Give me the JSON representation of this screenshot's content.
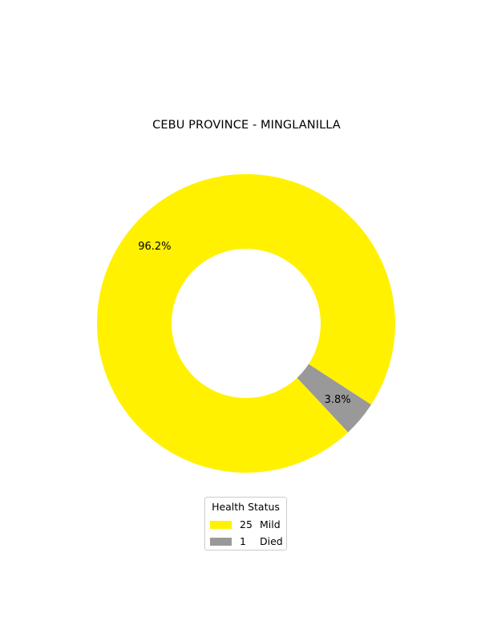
{
  "chart_data": {
    "type": "pie",
    "style": "donut",
    "title": "CEBU PROVINCE - MINGLANILLA",
    "slices": [
      {
        "label": "Mild",
        "count": "25",
        "value": 25,
        "pct_label": "96.2%",
        "color": "#fff100"
      },
      {
        "label": "Died",
        "count": "1",
        "value": 1,
        "pct_label": "3.8%",
        "color": "#999999"
      }
    ],
    "legend": {
      "title": "Health Status",
      "placement": "bottom-center"
    }
  }
}
